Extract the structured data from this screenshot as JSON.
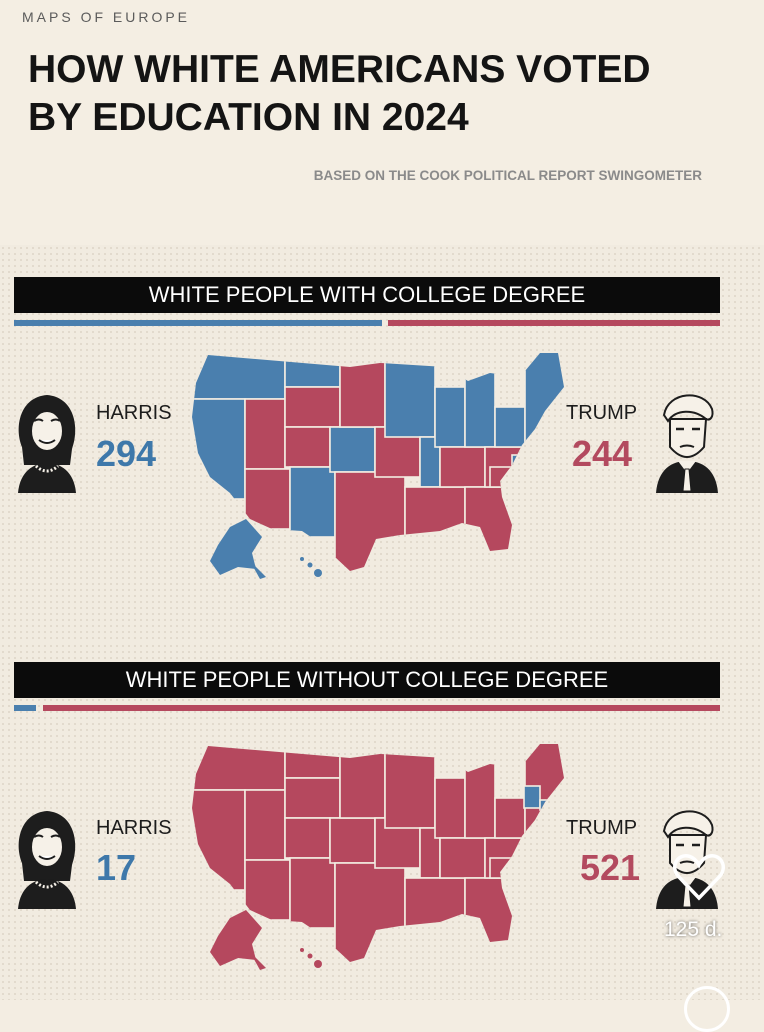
{
  "header": {
    "brand": "MAPS OF EUROPE",
    "title": "HOW WHITE AMERICANS VOTED\nBY EDUCATION IN 2024",
    "source": "BASED ON THE COOK POLITICAL REPORT SWINGOMETER"
  },
  "panels": [
    {
      "banner": "WHITE PEOPLE WITH COLLEGE DEGREE",
      "harris": {
        "label": "HARRIS",
        "votes": "294"
      },
      "trump": {
        "label": "TRUMP",
        "votes": "244"
      },
      "harris_share": 0.546,
      "trump_share": 0.454
    },
    {
      "banner": "WHITE PEOPLE WITHOUT COLLEGE DEGREE",
      "harris": {
        "label": "HARRIS",
        "votes": "17"
      },
      "trump": {
        "label": "TRUMP",
        "votes": "521"
      },
      "harris_share": 0.032,
      "trump_share": 0.968
    }
  ],
  "overlay": {
    "time": "125 d.",
    "like_icon": "heart-icon"
  },
  "colors": {
    "democrat": "#4a7fae",
    "republican": "#b5485e",
    "background": "#f3ede2"
  }
}
